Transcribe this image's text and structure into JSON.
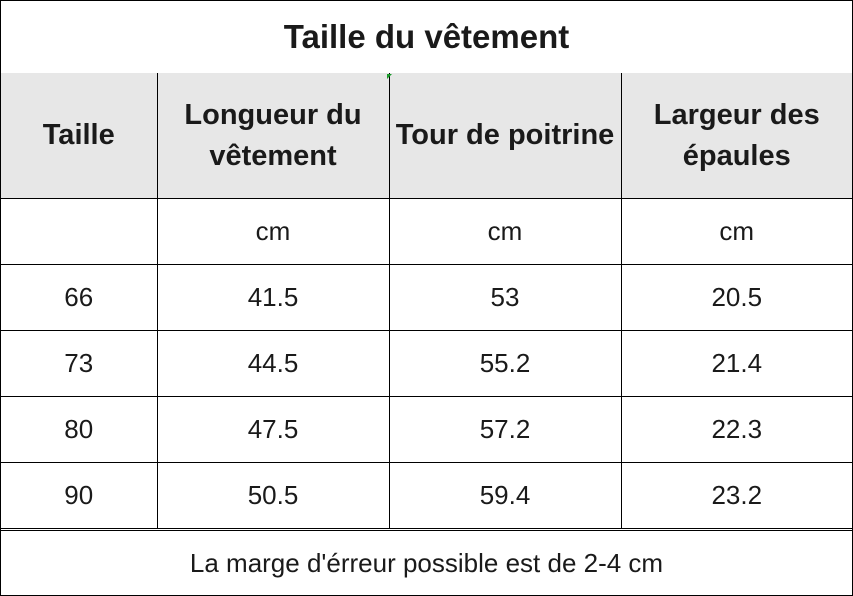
{
  "title": "Taille du vêtement",
  "columns": [
    "Taille",
    "Longueur du vêtement",
    "Tour de poitrine",
    "Largeur des épaules"
  ],
  "units": [
    "",
    "cm",
    "cm",
    "cm"
  ],
  "rows": [
    [
      "66",
      "41.5",
      "53",
      "20.5"
    ],
    [
      "73",
      "44.5",
      "55.2",
      "21.4"
    ],
    [
      "80",
      "47.5",
      "57.2",
      "22.3"
    ],
    [
      "90",
      "50.5",
      "59.4",
      "23.2"
    ]
  ],
  "footer": "La marge d'érreur possible est de 2-4 cm",
  "colors": {
    "header_background": "#e7e7e7",
    "border": "#000000",
    "marker": "#1a9a2a"
  }
}
